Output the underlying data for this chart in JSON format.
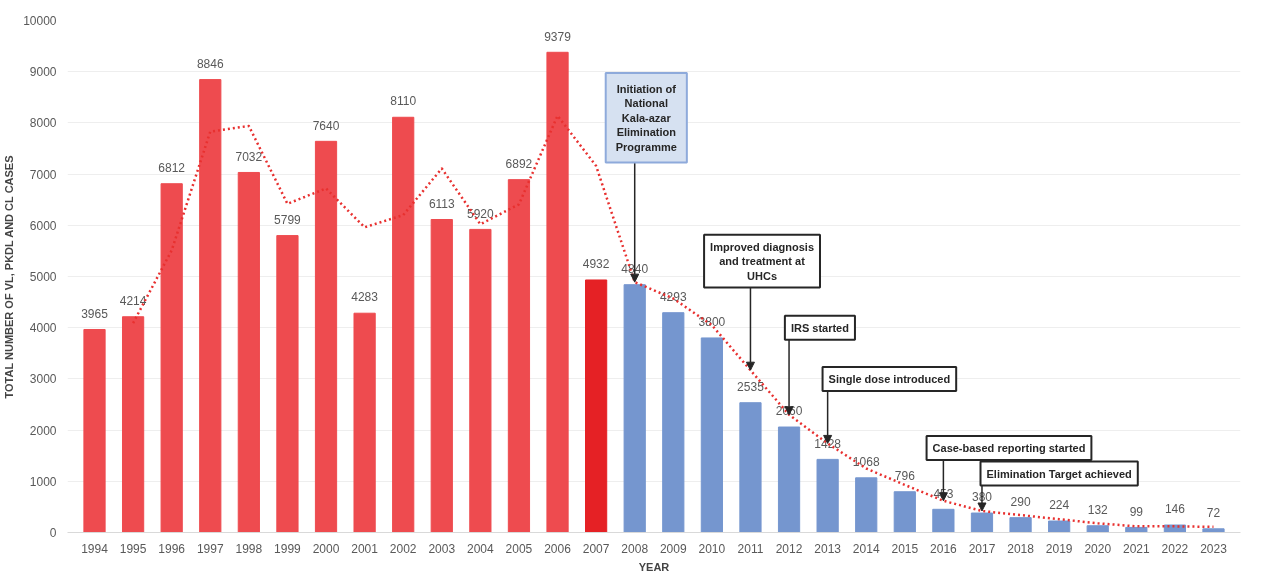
{
  "chart_data": {
    "type": "bar",
    "xlabel": "YEAR",
    "ylabel": "TOTAL NUMBER OF VL, PKDL AND CL CASES",
    "categories": [
      "1994",
      "1995",
      "1996",
      "1997",
      "1998",
      "1999",
      "2000",
      "2001",
      "2002",
      "2003",
      "2004",
      "2005",
      "2006",
      "2007",
      "2008",
      "2009",
      "2010",
      "2011",
      "2012",
      "2013",
      "2014",
      "2015",
      "2016",
      "2017",
      "2018",
      "2019",
      "2020",
      "2021",
      "2022",
      "2023"
    ],
    "values": [
      3965,
      4214,
      6812,
      8846,
      7032,
      5799,
      7640,
      4283,
      8110,
      6113,
      5920,
      6892,
      9379,
      4932,
      4840,
      4293,
      3800,
      2535,
      2060,
      1428,
      1068,
      796,
      453,
      380,
      290,
      224,
      132,
      99,
      146,
      72
    ],
    "value_labels": [
      "3965",
      "4214",
      "6812",
      "8846",
      "7032",
      "5799",
      "7640",
      "4283",
      "8110",
      "6113",
      "5920",
      "6892",
      "9379",
      "4932",
      "4840",
      "4293",
      "3800",
      "2535",
      "2060",
      "1428",
      "1068",
      "796",
      "453",
      "380",
      "290",
      "224",
      "132",
      "99",
      "146",
      "72"
    ],
    "colors": [
      "#ee4b4f",
      "#ee4b4f",
      "#ee4b4f",
      "#ee4b4f",
      "#ee4b4f",
      "#ee4b4f",
      "#ee4b4f",
      "#ee4b4f",
      "#ee4b4f",
      "#ee4b4f",
      "#ee4b4f",
      "#ee4b4f",
      "#ee4b4f",
      "#e52125",
      "#7596cf",
      "#7596cf",
      "#7596cf",
      "#7596cf",
      "#7596cf",
      "#7596cf",
      "#7596cf",
      "#7596cf",
      "#7596cf",
      "#7596cf",
      "#7596cf",
      "#7596cf",
      "#7596cf",
      "#7596cf",
      "#7596cf",
      "#7596cf"
    ],
    "series": [
      {
        "type": "line",
        "color": "#e8302f",
        "line_style": "dotted",
        "values": [
          null,
          4090,
          5510,
          7830,
          7940,
          6420,
          6720,
          5960,
          6200,
          7110,
          6020,
          6410,
          8140,
          7160,
          4890,
          4570,
          4050,
          3170,
          2300,
          1740,
          1250,
          930,
          620,
          420,
          340,
          260,
          180,
          120,
          120,
          110
        ]
      }
    ],
    "ylim": [
      0,
      10000
    ],
    "yticks": [
      0,
      1000,
      2000,
      3000,
      4000,
      5000,
      6000,
      7000,
      8000,
      9000,
      10000
    ],
    "grid": "y",
    "annotations": [
      {
        "text": "Initiation of\nNational\nKala-azar\nElimination\nProgramme",
        "x": "2008",
        "y": 4890
      },
      {
        "text": "Improved diagnosis\nand treatment at\nUHCs",
        "x": "2011",
        "y": 3170
      },
      {
        "text": "IRS started",
        "x": "2012",
        "y": 2300
      },
      {
        "text": "Single dose introduced",
        "x": "2013",
        "y": 1740
      },
      {
        "text": "Case-based reporting started",
        "x": "2016",
        "y": 620
      },
      {
        "text": "Elimination Target achieved",
        "x": "2017",
        "y": 420
      }
    ]
  }
}
